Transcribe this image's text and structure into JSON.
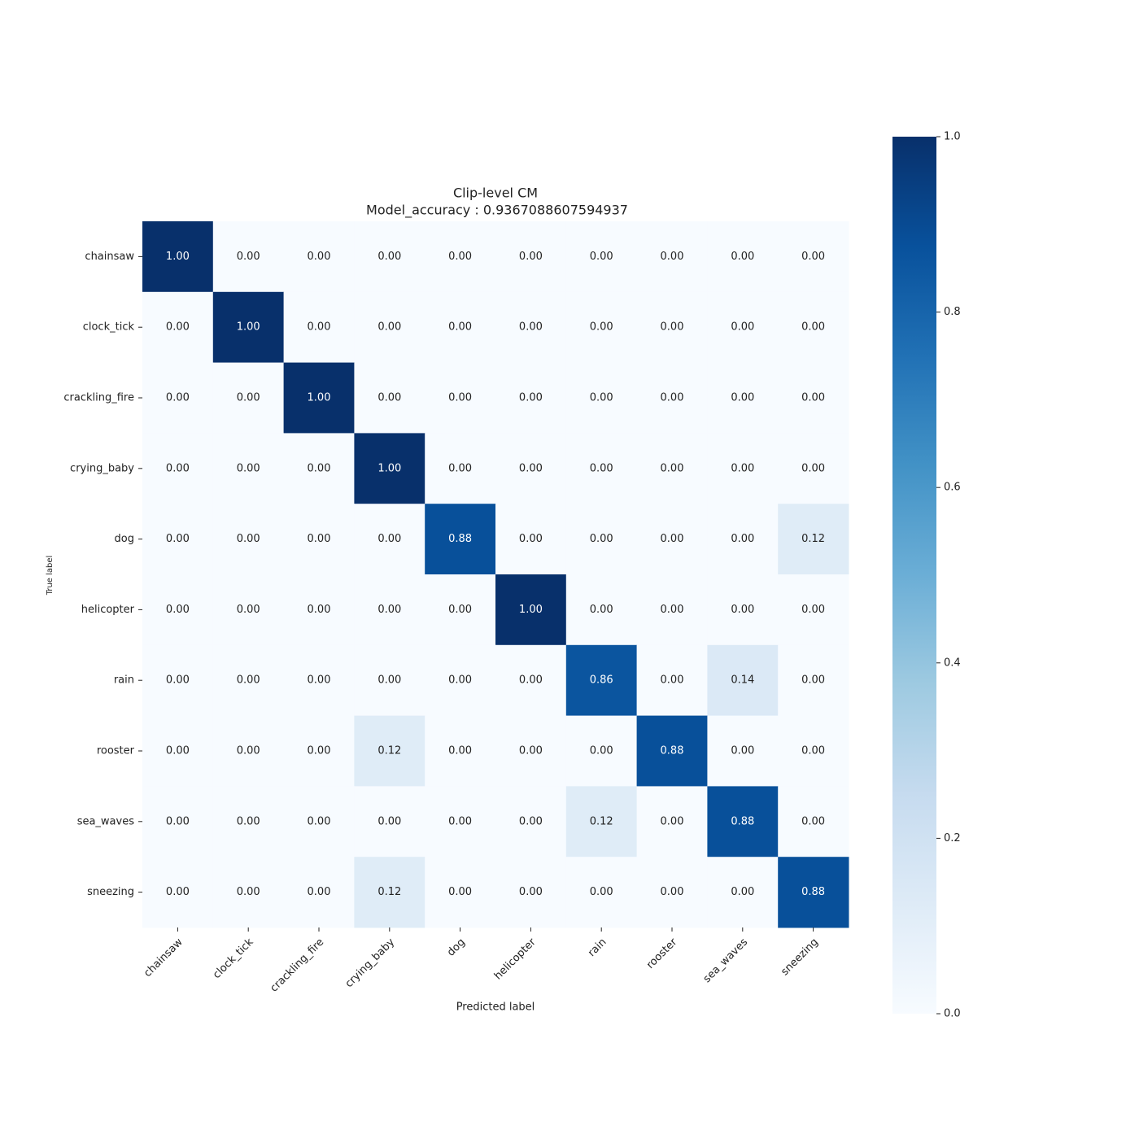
{
  "chart_data": {
    "type": "heatmap",
    "title": "Clip-level CM",
    "subtitle": "Model_accuracy : 0.9367088607594937",
    "x_label": "Predicted label",
    "y_label": "True label",
    "x_categories": [
      "chainsaw",
      "clock_tick",
      "crackling_fire",
      "crying_baby",
      "dog",
      "helicopter",
      "rain",
      "rooster",
      "sea_waves",
      "sneezing"
    ],
    "y_categories": [
      "chainsaw",
      "clock_tick",
      "crackling_fire",
      "crying_baby",
      "dog",
      "helicopter",
      "rain",
      "rooster",
      "sea_waves",
      "sneezing"
    ],
    "values": [
      [
        1,
        0,
        0,
        0,
        0,
        0,
        0,
        0,
        0,
        0
      ],
      [
        0,
        1,
        0,
        0,
        0,
        0,
        0,
        0,
        0,
        0
      ],
      [
        0,
        0,
        1,
        0,
        0,
        0,
        0,
        0,
        0,
        0
      ],
      [
        0,
        0,
        0,
        1,
        0,
        0,
        0,
        0,
        0,
        0
      ],
      [
        0,
        0,
        0,
        0,
        0.88,
        0,
        0,
        0,
        0,
        0.12
      ],
      [
        0,
        0,
        0,
        0,
        0,
        1,
        0,
        0,
        0,
        0
      ],
      [
        0,
        0,
        0,
        0,
        0,
        0,
        0.86,
        0,
        0.14,
        0
      ],
      [
        0,
        0,
        0,
        0.12,
        0,
        0,
        0,
        0.88,
        0,
        0
      ],
      [
        0,
        0,
        0,
        0,
        0,
        0,
        0.12,
        0,
        0.88,
        0
      ],
      [
        0,
        0,
        0,
        0.12,
        0,
        0,
        0,
        0,
        0,
        0.88
      ]
    ],
    "value_labels": [
      [
        "1.00",
        "0.00",
        "0.00",
        "0.00",
        "0.00",
        "0.00",
        "0.00",
        "0.00",
        "0.00",
        "0.00"
      ],
      [
        "0.00",
        "1.00",
        "0.00",
        "0.00",
        "0.00",
        "0.00",
        "0.00",
        "0.00",
        "0.00",
        "0.00"
      ],
      [
        "0.00",
        "0.00",
        "1.00",
        "0.00",
        "0.00",
        "0.00",
        "0.00",
        "0.00",
        "0.00",
        "0.00"
      ],
      [
        "0.00",
        "0.00",
        "0.00",
        "1.00",
        "0.00",
        "0.00",
        "0.00",
        "0.00",
        "0.00",
        "0.00"
      ],
      [
        "0.00",
        "0.00",
        "0.00",
        "0.00",
        "0.88",
        "0.00",
        "0.00",
        "0.00",
        "0.00",
        "0.12"
      ],
      [
        "0.00",
        "0.00",
        "0.00",
        "0.00",
        "0.00",
        "1.00",
        "0.00",
        "0.00",
        "0.00",
        "0.00"
      ],
      [
        "0.00",
        "0.00",
        "0.00",
        "0.00",
        "0.00",
        "0.00",
        "0.86",
        "0.00",
        "0.14",
        "0.00"
      ],
      [
        "0.00",
        "0.00",
        "0.00",
        "0.12",
        "0.00",
        "0.00",
        "0.00",
        "0.88",
        "0.00",
        "0.00"
      ],
      [
        "0.00",
        "0.00",
        "0.00",
        "0.00",
        "0.00",
        "0.00",
        "0.12",
        "0.00",
        "0.88",
        "0.00"
      ],
      [
        "0.00",
        "0.00",
        "0.00",
        "0.12",
        "0.00",
        "0.00",
        "0.00",
        "0.00",
        "0.00",
        "0.88"
      ]
    ],
    "zlim": [
      0,
      1
    ],
    "zticks": [
      {
        "value": 0,
        "label": "0.0"
      },
      0.2,
      0.4,
      0.6,
      0.8,
      {
        "value": 1,
        "label": "1.0"
      }
    ],
    "colormap": [
      "#f7fbff",
      "#deebf7",
      "#c6dbef",
      "#9ecae1",
      "#6baed6",
      "#4292c6",
      "#2171b5",
      "#08519c",
      "#08306b"
    ]
  }
}
